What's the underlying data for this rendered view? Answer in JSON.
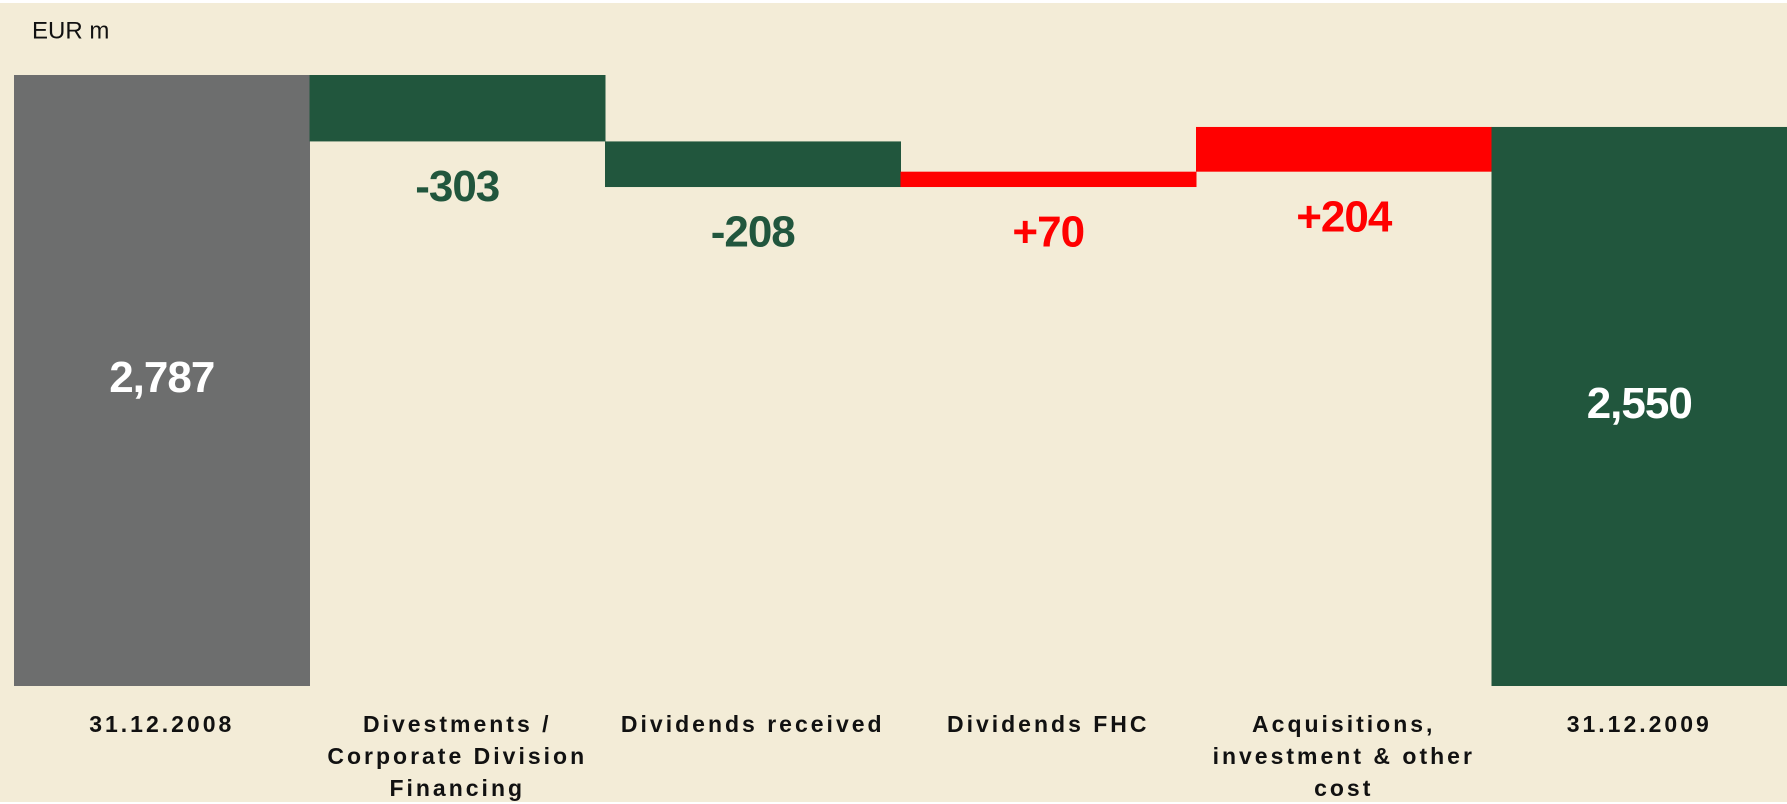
{
  "chart_data": {
    "type": "waterfall",
    "unit_label": "EUR m",
    "categories": [
      "31.12.2008",
      "Divestments / Corporate Division Financing",
      "Dividends received",
      "Dividends FHC",
      "Acquisitions, investment & other cost",
      "31.12.2009"
    ],
    "values": [
      2787,
      -303,
      -208,
      70,
      204,
      2550
    ],
    "value_labels": [
      "2,787",
      "-303",
      "-208",
      "+70",
      "+204",
      "2,550"
    ],
    "colors": [
      "#6d6e6e",
      "#21563d",
      "#21563d",
      "#ff0000",
      "#ff0000",
      "#21563d"
    ]
  }
}
